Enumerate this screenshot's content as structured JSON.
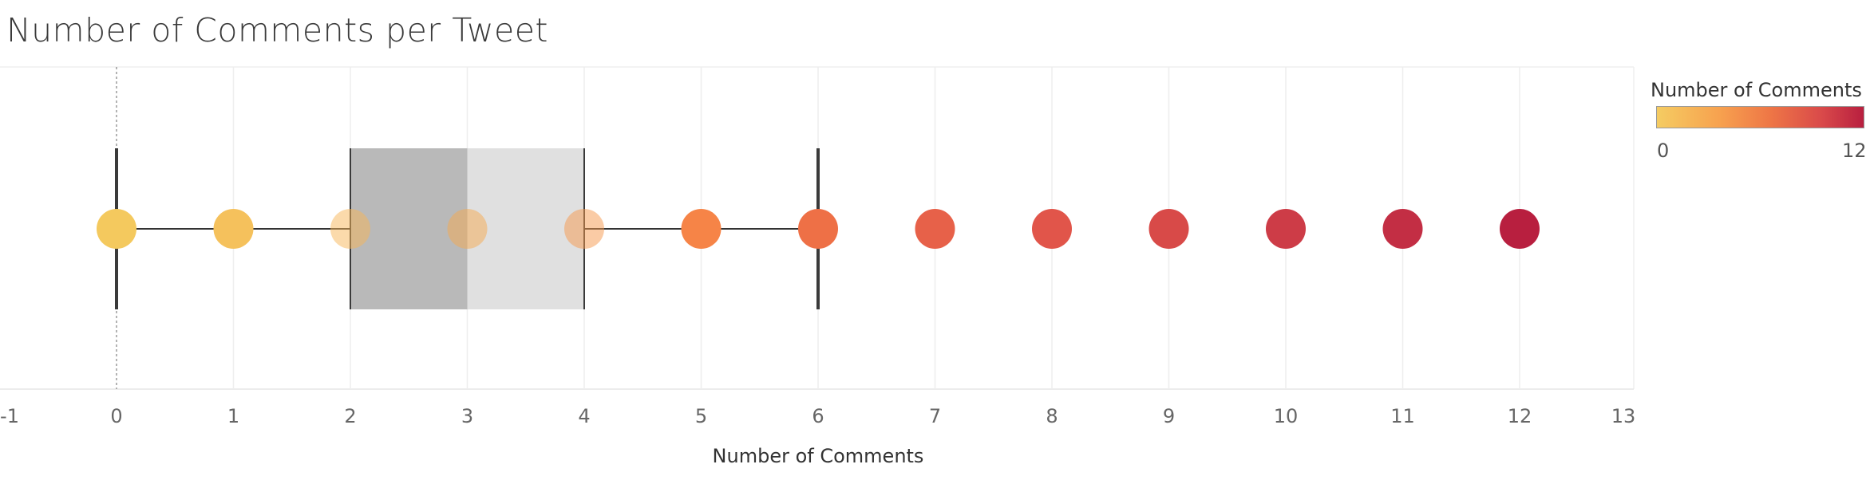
{
  "title": "Number of Comments per Tweet",
  "chart_data": {
    "type": "scatter",
    "title": "Number of Comments per Tweet",
    "xlabel": "Number of Comments",
    "ylabel": "",
    "xlim": [
      -1,
      13
    ],
    "x_ticks": [
      "-1",
      "0",
      "1",
      "2",
      "3",
      "4",
      "5",
      "6",
      "7",
      "8",
      "9",
      "10",
      "11",
      "12",
      "13"
    ],
    "points": [
      0,
      1,
      2,
      3,
      4,
      5,
      6,
      7,
      8,
      9,
      10,
      11,
      12
    ],
    "point_colors": [
      "#f4c95e",
      "#f5c15c",
      "#f7b657",
      "#f5a950",
      "#f6974b",
      "#f68447",
      "#ee7046",
      "#e76149",
      "#e1554a",
      "#d84a48",
      "#cd3c47",
      "#c32e44",
      "#b81f3f"
    ],
    "boxplot": {
      "whisker_low": 0,
      "q1": 2,
      "median": 3,
      "q3": 4,
      "whisker_high": 6
    },
    "box_colors": {
      "lower": "#b9b9b9",
      "upper": "#e0e0e0"
    },
    "grid": "vertical",
    "legend": {
      "title": "Number of Comments",
      "placement": "top-right",
      "min_label": "0",
      "max_label": "12",
      "min_color": "#f5cc62",
      "max_color": "#b81f3f"
    }
  }
}
